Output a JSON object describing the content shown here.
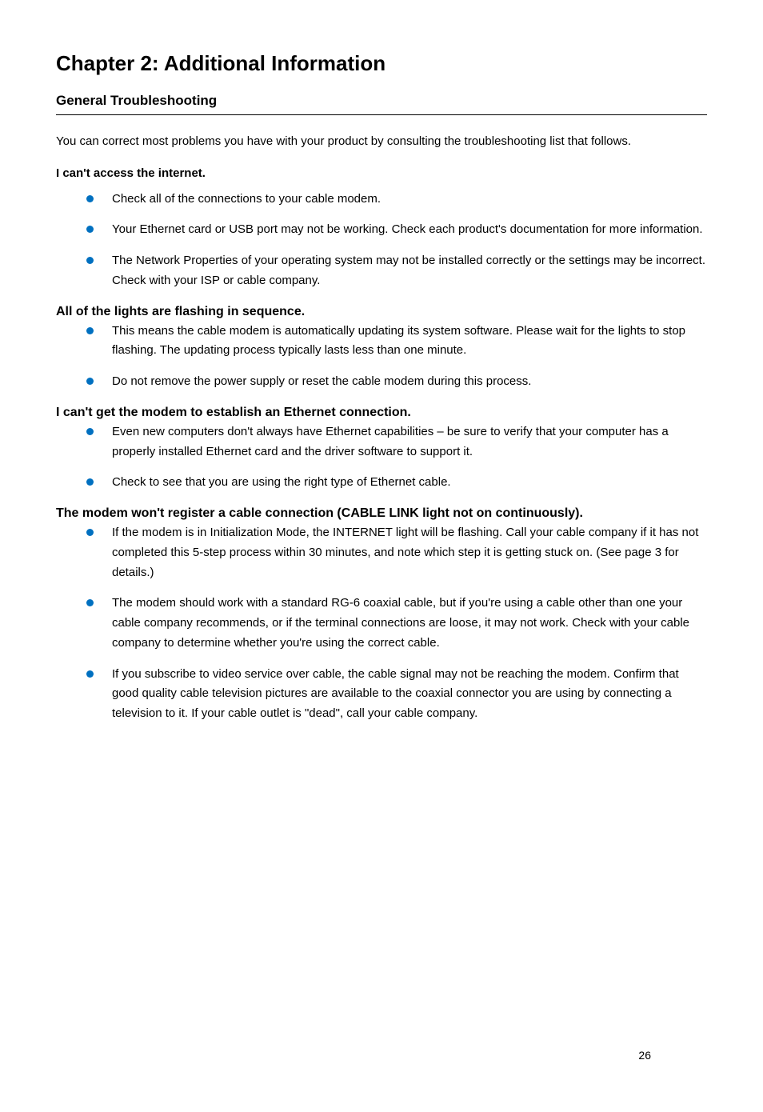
{
  "title": "Chapter 2: Additional Information",
  "section": "General Troubleshooting",
  "intro": "You can correct most problems you have with your product by consulting the troubleshooting list that follows.",
  "groups": [
    {
      "heading": "I can't access the internet.",
      "heading_class": "subhead",
      "items": [
        "Check all of the connections to your cable modem.",
        "Your Ethernet card or USB port may not be working. Check each product's documentation for more information.",
        "The Network Properties of your operating system may not be installed correctly or the settings may be incorrect. Check with your ISP or cable company."
      ]
    },
    {
      "heading": "All of the lights are flashing in sequence.",
      "heading_class": "subhead-lg",
      "items": [
        "This means the cable modem is automatically updating its system software. Please wait for the lights to stop flashing. The updating process typically lasts less than one minute.",
        "Do not remove the power supply or reset the cable modem during this process."
      ]
    },
    {
      "heading": "I can't get the modem to establish an Ethernet connection.",
      "heading_class": "subhead-lg",
      "items": [
        "Even new computers don't always have Ethernet capabilities – be sure to verify that your computer has a properly installed Ethernet card and the driver software to support it.",
        "Check to see that you are using the right type of Ethernet cable."
      ]
    },
    {
      "heading": "The modem won't register a cable connection (CABLE LINK light not on continuously).",
      "heading_class": "subhead-lg",
      "items": [
        "If the modem is in Initialization Mode, the INTERNET light will be flashing. Call your cable company if it has not completed this 5-step process within 30 minutes, and note which step it is getting stuck on. (See page 3 for details.)",
        "The modem should work with a standard RG-6 coaxial cable, but if you're using a cable other than one your cable company recommends, or if the terminal connections are loose, it may not work. Check with your cable company to determine whether you're using the correct cable.",
        "If you subscribe to video service over cable, the cable signal may not be reaching the modem. Confirm that good quality cable television pictures are available to the coaxial connector you are using by connecting a television to it. If your cable outlet is \"dead\", call your cable company."
      ]
    }
  ],
  "page_number": "26",
  "bullet_color": "#0070c0"
}
